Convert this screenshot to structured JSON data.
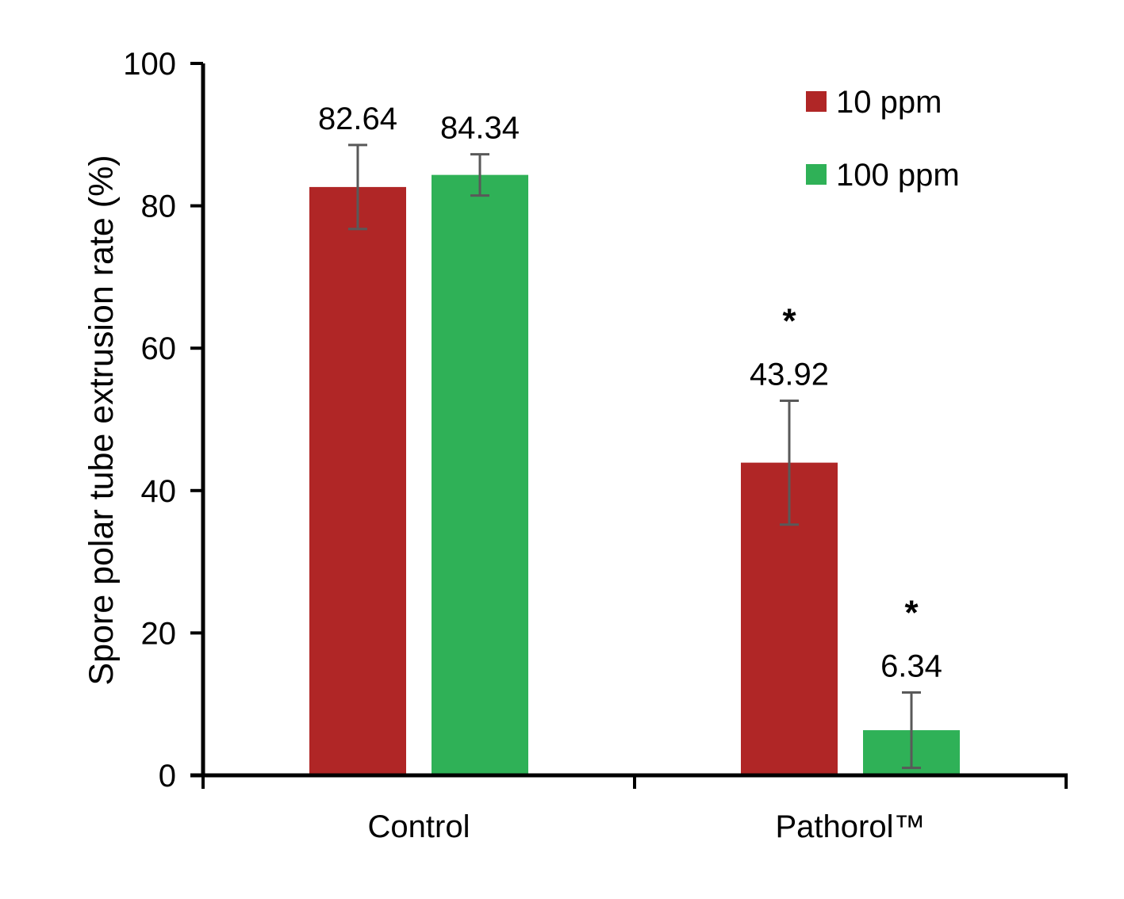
{
  "chart_data": {
    "type": "bar",
    "ylabel": "Spore polar tube extrusion rate (%)",
    "ylim": [
      0,
      100
    ],
    "yticks": [
      "0",
      "20",
      "40",
      "60",
      "80",
      "100"
    ],
    "categories": [
      "Control",
      "Pathorol™"
    ],
    "legend_position": "top-right",
    "grid": false,
    "series": [
      {
        "name": "10 ppm",
        "color": "#b02626",
        "values": [
          82.64,
          43.92
        ],
        "errors": [
          5.9,
          8.7
        ],
        "labels": [
          "82.64",
          "43.92"
        ],
        "significance": [
          "",
          "*"
        ]
      },
      {
        "name": "100 ppm",
        "color": "#2fb157",
        "values": [
          84.34,
          6.34
        ],
        "errors": [
          2.9,
          5.3
        ],
        "labels": [
          "84.34",
          "6.34"
        ],
        "significance": [
          "",
          "*"
        ]
      }
    ]
  }
}
